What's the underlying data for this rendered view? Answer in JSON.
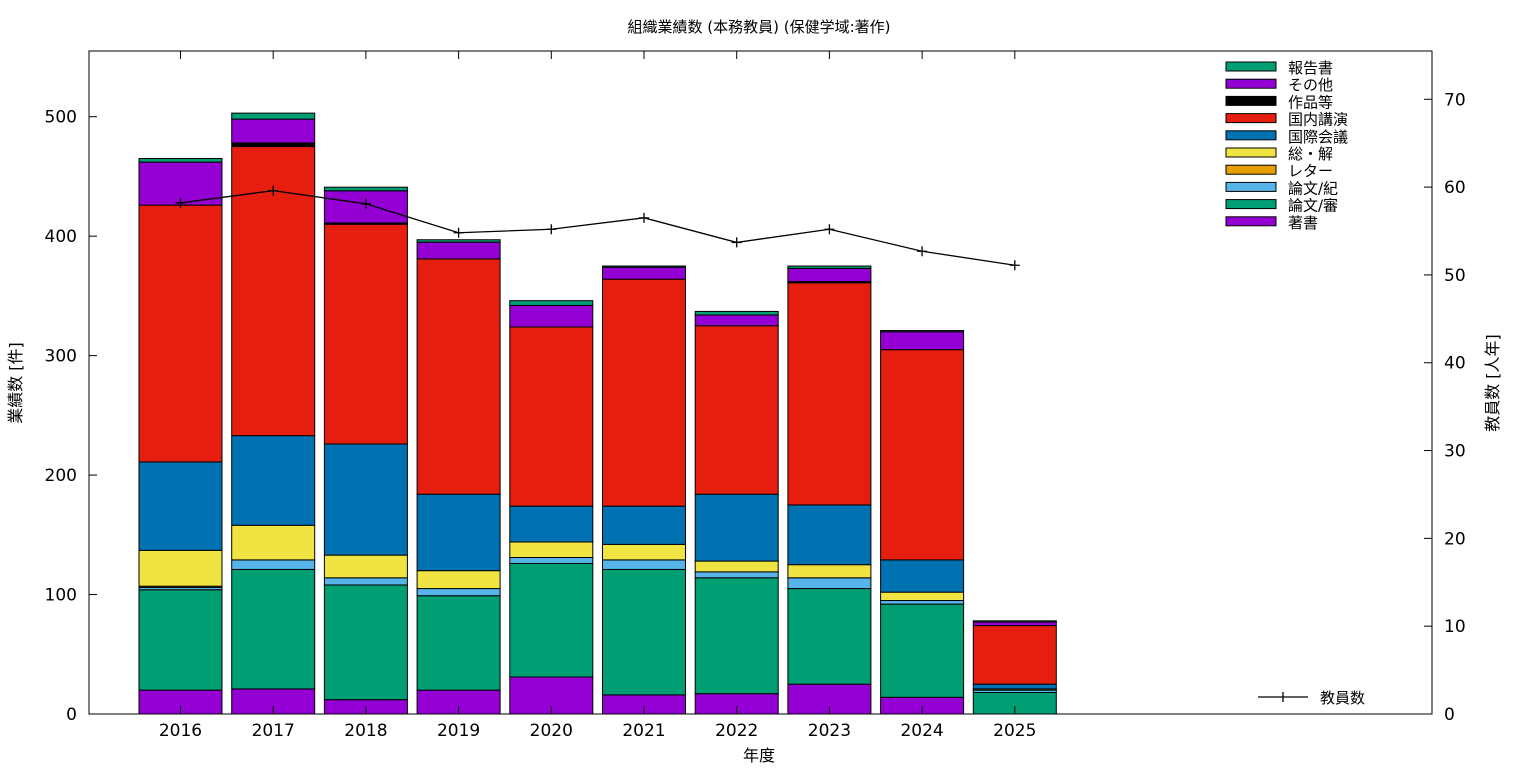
{
  "chart_data": {
    "type": "bar",
    "title": "組織業績数 (本務教員) (保健学域:著作)",
    "xlabel": "年度",
    "ylabel": "業績数 [件]",
    "y2label": "教員数 [人年]",
    "categories": [
      "2016",
      "2017",
      "2018",
      "2019",
      "2020",
      "2021",
      "2022",
      "2023",
      "2024",
      "2025"
    ],
    "ylim": [
      0,
      555
    ],
    "y2lim": [
      0,
      75.5
    ],
    "yticks": [
      0,
      100,
      200,
      300,
      400,
      500
    ],
    "y2ticks": [
      0,
      10,
      20,
      30,
      40,
      50,
      60,
      70
    ],
    "grid": false,
    "legend_position": "top-right",
    "stacked": true,
    "series": [
      {
        "name": "著書",
        "color": "#9400d3",
        "values": [
          20,
          21,
          12,
          20,
          31,
          16,
          17,
          25,
          14,
          0
        ]
      },
      {
        "name": "論文/審",
        "color": "#009e73",
        "values": [
          84,
          100,
          96,
          79,
          95,
          105,
          97,
          80,
          78,
          18
        ]
      },
      {
        "name": "論文/紀",
        "color": "#56b4e9",
        "values": [
          2,
          8,
          6,
          6,
          5,
          8,
          5,
          9,
          3,
          2
        ]
      },
      {
        "name": "レター",
        "color": "#e69f00",
        "values": [
          1,
          0,
          0,
          0,
          0,
          0,
          0,
          0,
          0,
          0
        ]
      },
      {
        "name": "総・解",
        "color": "#f0e442",
        "values": [
          30,
          29,
          19,
          15,
          13,
          13,
          9,
          11,
          7,
          1
        ]
      },
      {
        "name": "国際会議",
        "color": "#0072b2",
        "values": [
          74,
          75,
          93,
          64,
          30,
          32,
          56,
          50,
          27,
          4
        ]
      },
      {
        "name": "国内講演",
        "color": "#e51e10",
        "values": [
          215,
          242,
          184,
          197,
          150,
          190,
          141,
          186,
          176,
          49
        ]
      },
      {
        "name": "作品等",
        "color": "#000000",
        "values": [
          0,
          3,
          1,
          0,
          0,
          0,
          0,
          1,
          0,
          0
        ]
      },
      {
        "name": "その他",
        "color": "#9400d3",
        "values": [
          36,
          20,
          27,
          14,
          18,
          10,
          9,
          11,
          15,
          3
        ]
      },
      {
        "name": "報告書",
        "color": "#009e73",
        "values": [
          3,
          5,
          3,
          2,
          4,
          1,
          3,
          2,
          1,
          1
        ]
      }
    ],
    "line_series": {
      "name": "教員数",
      "axis": "right",
      "color": "#000000",
      "values": [
        58.2,
        59.6,
        58.1,
        54.8,
        55.2,
        56.5,
        53.7,
        55.2,
        52.7,
        51.1
      ]
    }
  }
}
